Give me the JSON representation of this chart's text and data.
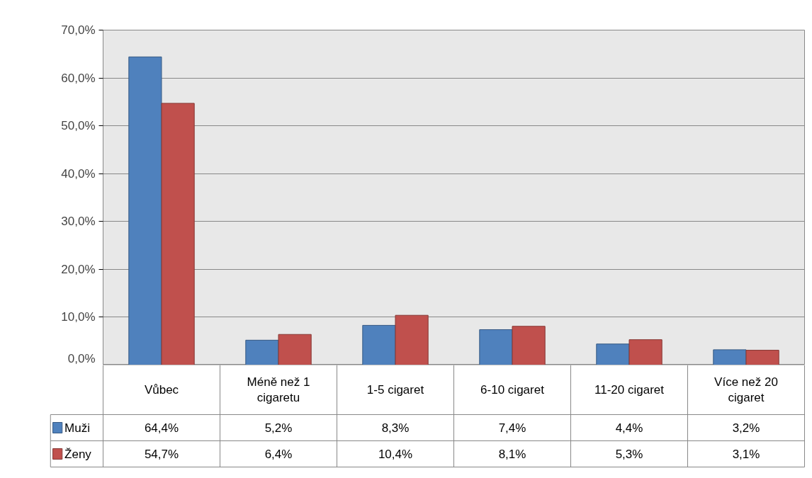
{
  "chart_data": {
    "type": "bar",
    "categories": [
      "Vůbec",
      "Méně než 1 cigaretu",
      "1-5 cigaret",
      "6-10 cigaret",
      "11-20 cigaret",
      "Více než 20 cigaret"
    ],
    "series": [
      {
        "name": "Muži",
        "color": "#4f81bd",
        "values": [
          64.4,
          5.2,
          8.3,
          7.4,
          4.4,
          3.2
        ],
        "value_labels": [
          "64,4%",
          "5,2%",
          "8,3%",
          "7,4%",
          "4,4%",
          "3,2%"
        ]
      },
      {
        "name": "Ženy",
        "color": "#c0504d",
        "values": [
          54.7,
          6.4,
          10.4,
          8.1,
          5.3,
          3.1
        ],
        "value_labels": [
          "54,7%",
          "6,4%",
          "10,4%",
          "8,1%",
          "5,3%",
          "3,1%"
        ]
      }
    ],
    "ylim": [
      0,
      70
    ],
    "yticks": [
      {
        "value": 0,
        "label": "0,0%"
      },
      {
        "value": 10,
        "label": "10,0%"
      },
      {
        "value": 20,
        "label": "20,0%"
      },
      {
        "value": 30,
        "label": "30,0%"
      },
      {
        "value": 40,
        "label": "40,0%"
      },
      {
        "value": 50,
        "label": "50,0%"
      },
      {
        "value": 60,
        "label": "60,0%"
      },
      {
        "value": 70,
        "label": "70,0%"
      }
    ],
    "grid": "y",
    "legend": "bottom left"
  }
}
